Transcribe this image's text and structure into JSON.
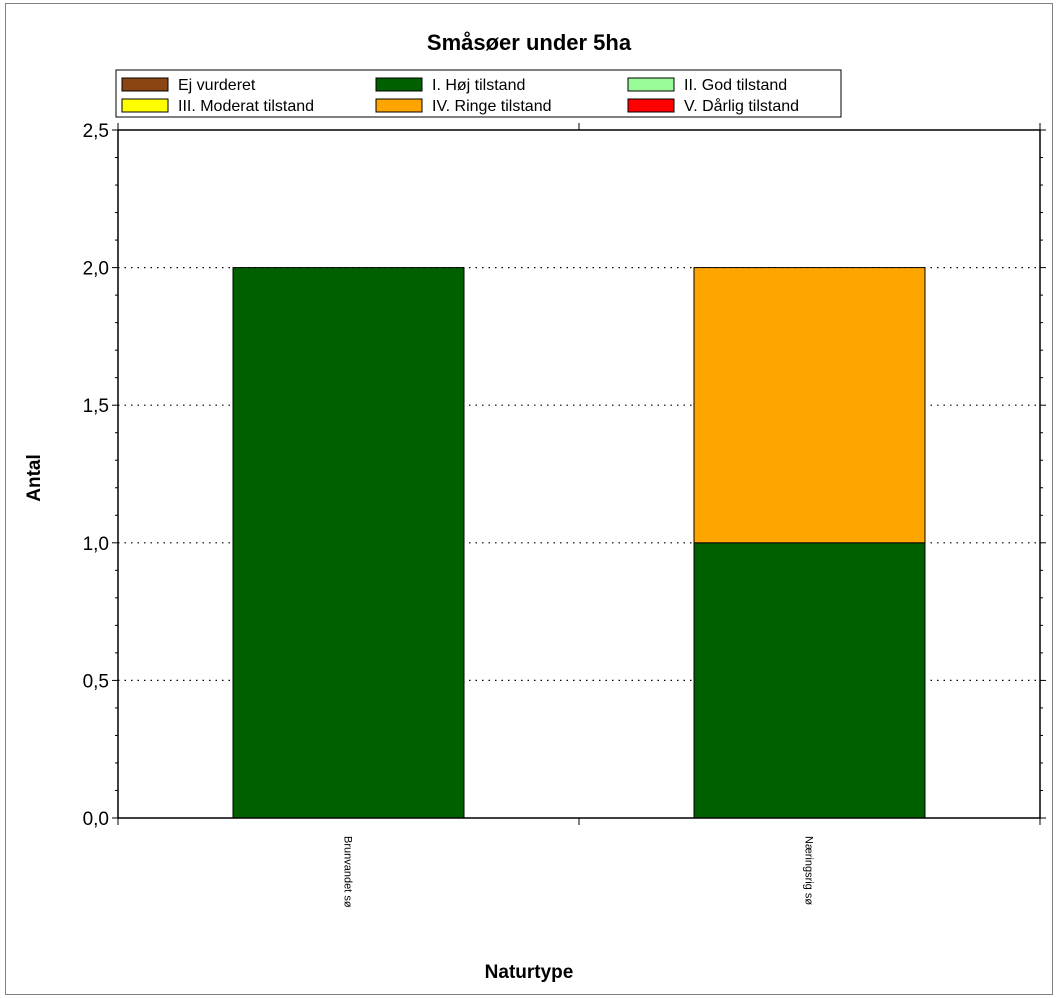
{
  "chart_data": {
    "type": "bar",
    "stacked": true,
    "title": "Småsøer under 5ha",
    "xlabel": "Naturtype",
    "ylabel": "Antal",
    "categories": [
      "Brunvandet sø",
      "Næringsrig sø"
    ],
    "ylim": [
      0,
      2.5
    ],
    "yticks": [
      "0,0",
      "0,5",
      "1,0",
      "1,5",
      "2,0",
      "2,5"
    ],
    "grid": "horizontal dotted",
    "legend_position": "top",
    "series": [
      {
        "name": "Ej vurderet",
        "color": "#8B4513",
        "values": [
          0,
          0
        ]
      },
      {
        "name": "I. Høj tilstand",
        "color": "#006000",
        "values": [
          2,
          1
        ]
      },
      {
        "name": "II. God tilstand",
        "color": "#98FB98",
        "values": [
          0,
          0
        ]
      },
      {
        "name": "III. Moderat tilstand",
        "color": "#FFFF00",
        "values": [
          0,
          0
        ]
      },
      {
        "name": "IV. Ringe tilstand",
        "color": "#FFA500",
        "values": [
          0,
          1
        ]
      },
      {
        "name": "V. Dårlig tilstand",
        "color": "#FF0000",
        "values": [
          0,
          0
        ]
      }
    ]
  }
}
